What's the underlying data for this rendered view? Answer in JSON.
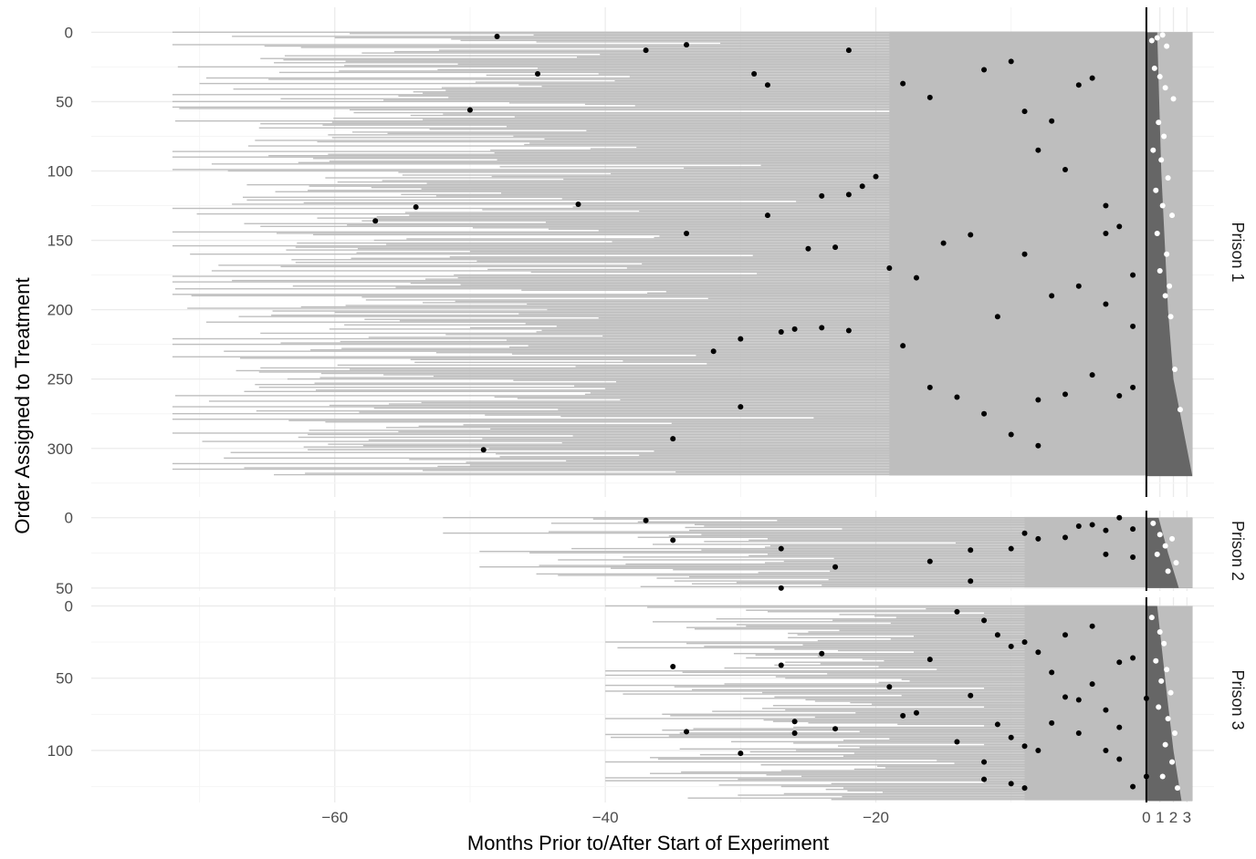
{
  "chart_data": {
    "type": "bar",
    "xlabel": "Months Prior to/After Start of Experiment",
    "ylabel": "Order Assigned to Treatment",
    "xlim": [
      -78,
      5
    ],
    "x_ticks": [
      -60,
      -40,
      -20,
      0,
      1,
      2,
      3
    ],
    "x_tick_labels": [
      "−60",
      "−40",
      "−20",
      "0",
      "1",
      "2",
      "3"
    ],
    "y_reversed": true,
    "grid": true,
    "vline_x": 0,
    "colors": {
      "pre_period": "#bebebe",
      "post_period": "#666666",
      "pre_event_point": "#000000",
      "post_event_point": "#ffffff",
      "grid_major": "#ebebeb",
      "grid_minor": "#f5f5f5",
      "vline": "#000000"
    },
    "panels": [
      {
        "name": "Prison 1",
        "n": 320,
        "ylim": [
          -18,
          335
        ],
        "y_ticks": [
          0,
          50,
          100,
          150,
          200,
          250,
          300
        ],
        "x_end": 3.4,
        "min_start_x": -72,
        "start_x_sample": [
          -72,
          -70,
          -65,
          -68,
          -61,
          -55,
          -70,
          -58,
          -50,
          -64,
          -45,
          -60,
          -52,
          -67,
          -48,
          -56,
          -42,
          -62,
          -50,
          -70,
          -58,
          -46,
          -64,
          -53,
          -40,
          -57,
          -62,
          -44,
          -36,
          -60
        ],
        "post_boundary": [
          [
            0,
            0.8
          ],
          [
            100,
            1.1
          ],
          [
            200,
            1.6
          ],
          [
            250,
            2.0
          ],
          [
            320,
            3.4
          ]
        ],
        "points_pre": [
          [
            -48,
            3
          ],
          [
            -45,
            30
          ],
          [
            -37,
            13
          ],
          [
            -34,
            9
          ],
          [
            -29,
            30
          ],
          [
            -28,
            38
          ],
          [
            -22,
            13
          ],
          [
            -18,
            37
          ],
          [
            -16,
            47
          ],
          [
            -12,
            27
          ],
          [
            -10,
            21
          ],
          [
            -9,
            57
          ],
          [
            -8,
            85
          ],
          [
            -7,
            64
          ],
          [
            -6,
            99
          ],
          [
            -5,
            38
          ],
          [
            -4,
            33
          ],
          [
            -3,
            125
          ],
          [
            -3,
            145
          ],
          [
            -2,
            140
          ],
          [
            -1,
            175
          ],
          [
            -50,
            56
          ],
          [
            -54,
            126
          ],
          [
            -57,
            136
          ],
          [
            -42,
            124
          ],
          [
            -34,
            145
          ],
          [
            -28,
            132
          ],
          [
            -25,
            156
          ],
          [
            -23,
            155
          ],
          [
            -24,
            118
          ],
          [
            -22,
            117
          ],
          [
            -21,
            111
          ],
          [
            -20,
            104
          ],
          [
            -19,
            170
          ],
          [
            -17,
            177
          ],
          [
            -15,
            152
          ],
          [
            -13,
            146
          ],
          [
            -11,
            205
          ],
          [
            -9,
            160
          ],
          [
            -7,
            190
          ],
          [
            -5,
            183
          ],
          [
            -3,
            196
          ],
          [
            -1,
            212
          ],
          [
            -32,
            230
          ],
          [
            -30,
            221
          ],
          [
            -27,
            216
          ],
          [
            -26,
            214
          ],
          [
            -24,
            213
          ],
          [
            -22,
            215
          ],
          [
            -18,
            226
          ],
          [
            -16,
            256
          ],
          [
            -14,
            263
          ],
          [
            -12,
            275
          ],
          [
            -10,
            290
          ],
          [
            -8,
            298
          ],
          [
            -49,
            301
          ],
          [
            -35,
            293
          ],
          [
            -30,
            270
          ],
          [
            -4,
            247
          ],
          [
            -6,
            261
          ],
          [
            -8,
            265
          ],
          [
            -2,
            262
          ],
          [
            -1,
            256
          ]
        ],
        "points_post": [
          [
            0.4,
            6
          ],
          [
            0.8,
            4
          ],
          [
            1.2,
            2
          ],
          [
            1.5,
            10
          ],
          [
            0.6,
            26
          ],
          [
            1.0,
            32
          ],
          [
            1.4,
            40
          ],
          [
            2.0,
            48
          ],
          [
            0.9,
            65
          ],
          [
            1.3,
            75
          ],
          [
            0.5,
            85
          ],
          [
            1.1,
            92
          ],
          [
            1.6,
            105
          ],
          [
            0.7,
            114
          ],
          [
            1.2,
            125
          ],
          [
            1.9,
            132
          ],
          [
            0.8,
            145
          ],
          [
            1.5,
            160
          ],
          [
            1.0,
            172
          ],
          [
            1.7,
            183
          ],
          [
            1.4,
            190
          ],
          [
            1.8,
            205
          ],
          [
            2.1,
            243
          ],
          [
            2.5,
            272
          ]
        ]
      },
      {
        "name": "Prison 2",
        "n": 50,
        "ylim": [
          -5,
          52
        ],
        "y_ticks": [
          0,
          50
        ],
        "x_end": 3.4,
        "min_start_x": -52,
        "start_x_sample": [
          -48,
          -38,
          -34,
          -42,
          -30,
          -36,
          -26,
          -40,
          -32,
          -44,
          -28,
          -35,
          -24,
          -46,
          -30,
          -38,
          -52,
          -33,
          -27,
          -41
        ],
        "post_boundary": [
          [
            0,
            0.9
          ],
          [
            25,
            1.6
          ],
          [
            50,
            2.4
          ]
        ],
        "points_pre": [
          [
            -37,
            2
          ],
          [
            -35,
            16
          ],
          [
            -27,
            22
          ],
          [
            -23,
            35
          ],
          [
            -16,
            31
          ],
          [
            -13,
            23
          ],
          [
            -10,
            22
          ],
          [
            -9,
            11
          ],
          [
            -8,
            15
          ],
          [
            -6,
            14
          ],
          [
            -5,
            6
          ],
          [
            -4,
            5
          ],
          [
            -3,
            9
          ],
          [
            -2,
            0
          ],
          [
            -1,
            8
          ],
          [
            -1,
            28
          ],
          [
            -27,
            50
          ],
          [
            -13,
            45
          ],
          [
            -3,
            26
          ]
        ],
        "points_post": [
          [
            0.5,
            4
          ],
          [
            1.0,
            12
          ],
          [
            1.4,
            20
          ],
          [
            1.9,
            15
          ],
          [
            2.2,
            32
          ],
          [
            0.8,
            26
          ],
          [
            1.6,
            38
          ]
        ]
      },
      {
        "name": "Prison 3",
        "n": 135,
        "ylim": [
          -6,
          136
        ],
        "y_ticks": [
          0,
          50,
          100
        ],
        "x_end": 3.4,
        "min_start_x": -40,
        "start_x_sample": [
          -32,
          -22,
          -26,
          -38,
          -20,
          -30,
          -24,
          -36,
          -18,
          -28,
          -34,
          -21,
          -40,
          -25,
          -19,
          -33,
          -27,
          -37,
          -23,
          -31
        ],
        "post_boundary": [
          [
            0,
            0.8
          ],
          [
            60,
            1.5
          ],
          [
            100,
            2.0
          ],
          [
            135,
            2.6
          ]
        ],
        "points_pre": [
          [
            -14,
            4
          ],
          [
            -12,
            10
          ],
          [
            -11,
            20
          ],
          [
            -10,
            28
          ],
          [
            -9,
            25
          ],
          [
            -8,
            32
          ],
          [
            -7,
            46
          ],
          [
            -6,
            63
          ],
          [
            -5,
            65
          ],
          [
            -4,
            54
          ],
          [
            -3,
            72
          ],
          [
            -2,
            84
          ],
          [
            -1,
            36
          ],
          [
            -35,
            42
          ],
          [
            -27,
            41
          ],
          [
            -24,
            33
          ],
          [
            -26,
            80
          ],
          [
            -26,
            88
          ],
          [
            -23,
            85
          ],
          [
            -17,
            74
          ],
          [
            -18,
            76
          ],
          [
            -14,
            94
          ],
          [
            -12,
            108
          ],
          [
            -10,
            91
          ],
          [
            -10,
            123
          ],
          [
            -9,
            126
          ],
          [
            -30,
            102
          ],
          [
            -34,
            87
          ],
          [
            -19,
            56
          ],
          [
            -16,
            37
          ],
          [
            -9,
            97
          ],
          [
            -8,
            100
          ],
          [
            -7,
            81
          ],
          [
            -5,
            88
          ],
          [
            -3,
            100
          ],
          [
            -2,
            106
          ],
          [
            -1,
            125
          ],
          [
            -11,
            82
          ],
          [
            -12,
            120
          ],
          [
            -13,
            62
          ],
          [
            -6,
            20
          ],
          [
            -4,
            14
          ],
          [
            -2,
            39
          ],
          [
            0,
            64
          ],
          [
            0,
            118
          ]
        ],
        "points_post": [
          [
            0.4,
            8
          ],
          [
            1.0,
            18
          ],
          [
            1.3,
            26
          ],
          [
            0.7,
            38
          ],
          [
            1.5,
            44
          ],
          [
            1.1,
            52
          ],
          [
            1.8,
            60
          ],
          [
            0.9,
            70
          ],
          [
            1.6,
            78
          ],
          [
            2.1,
            88
          ],
          [
            1.4,
            96
          ],
          [
            1.9,
            108
          ],
          [
            1.2,
            118
          ],
          [
            2.3,
            126
          ]
        ]
      }
    ]
  }
}
